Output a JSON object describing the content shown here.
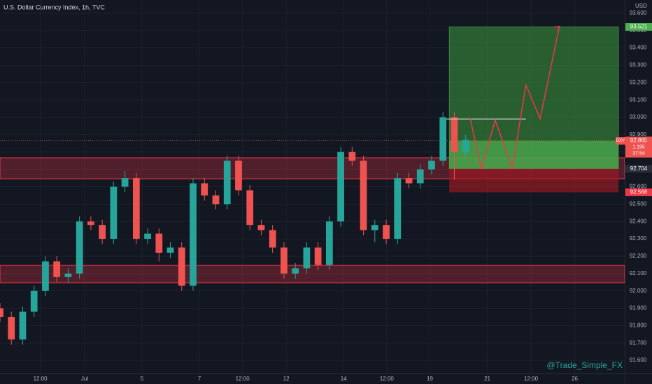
{
  "chart_data": {
    "type": "candlestick",
    "title": "U.S. Dollar Currency Index, 1h, TVC",
    "currency": "USD",
    "watermark": "@Trade_Simple_FX",
    "up_color": "#26a69a",
    "down_color": "#ef5350",
    "x": [
      0,
      2,
      4,
      6,
      8,
      10,
      12,
      14,
      16,
      18,
      20,
      22,
      24,
      26,
      28,
      30,
      32,
      34,
      36,
      38,
      40,
      42,
      44,
      46,
      48,
      50,
      52,
      54,
      56,
      58,
      60,
      62,
      64,
      66,
      68,
      70,
      72,
      74,
      76,
      78,
      80,
      82
    ],
    "open": [
      91.9,
      91.85,
      91.72,
      91.88,
      92.0,
      92.17,
      92.08,
      92.1,
      92.4,
      92.38,
      92.3,
      92.6,
      92.65,
      92.3,
      92.33,
      92.22,
      92.25,
      92.03,
      92.62,
      92.55,
      92.5,
      92.75,
      92.58,
      92.38,
      92.35,
      92.25,
      92.1,
      92.13,
      92.25,
      92.15,
      92.4,
      92.8,
      92.75,
      92.35,
      92.38,
      92.3,
      92.65,
      92.62,
      92.7,
      92.75,
      93.0,
      92.8
    ],
    "high": [
      91.93,
      91.88,
      91.91,
      92.03,
      92.2,
      92.2,
      92.13,
      92.43,
      92.43,
      92.41,
      92.63,
      92.69,
      92.68,
      92.36,
      92.36,
      92.28,
      92.28,
      92.65,
      92.65,
      92.58,
      92.78,
      92.78,
      92.61,
      92.41,
      92.38,
      92.28,
      92.16,
      92.28,
      92.28,
      92.43,
      92.83,
      92.83,
      92.78,
      92.41,
      92.41,
      92.68,
      92.68,
      92.73,
      92.78,
      93.03,
      93.03,
      92.9
    ],
    "low": [
      91.82,
      91.69,
      91.69,
      91.85,
      91.97,
      92.05,
      92.05,
      92.07,
      92.35,
      92.27,
      92.27,
      92.57,
      92.27,
      92.27,
      92.17,
      92.19,
      92.0,
      92.0,
      92.52,
      92.47,
      92.47,
      92.55,
      92.35,
      92.32,
      92.22,
      92.07,
      92.07,
      92.1,
      92.12,
      92.12,
      92.37,
      92.72,
      92.32,
      92.28,
      92.27,
      92.27,
      92.59,
      92.59,
      92.67,
      92.72,
      92.64,
      92.77
    ],
    "close": [
      91.85,
      91.72,
      91.88,
      92.0,
      92.17,
      92.08,
      92.1,
      92.4,
      92.38,
      92.3,
      92.6,
      92.65,
      92.3,
      92.33,
      92.22,
      92.25,
      92.03,
      92.62,
      92.55,
      92.5,
      92.75,
      92.58,
      92.38,
      92.35,
      92.25,
      92.1,
      92.13,
      92.25,
      92.15,
      92.4,
      92.8,
      92.75,
      92.35,
      92.38,
      92.3,
      92.65,
      92.62,
      92.7,
      92.75,
      93.0,
      92.8,
      92.87
    ],
    "xlim": [
      0,
      110
    ],
    "ylim": [
      91.524,
      93.676
    ],
    "xticks": [
      {
        "value": 7.1,
        "label": "12:00"
      },
      {
        "value": 14.9,
        "label": "Jul"
      },
      {
        "value": 25,
        "label": "5"
      },
      {
        "value": 35.1,
        "label": "7"
      },
      {
        "value": 42.7,
        "label": "12:00"
      },
      {
        "value": 50.4,
        "label": "12"
      },
      {
        "value": 60.5,
        "label": "14"
      },
      {
        "value": 68.1,
        "label": "12:00"
      },
      {
        "value": 75.7,
        "label": "19"
      },
      {
        "value": 85.8,
        "label": "21"
      },
      {
        "value": 93.5,
        "label": "12:00"
      },
      {
        "value": 101.2,
        "label": "26"
      }
    ],
    "yticks": [
      {
        "value": 91.6,
        "label": "91.600"
      },
      {
        "value": 91.7,
        "label": "91.700"
      },
      {
        "value": 91.8,
        "label": "91.800"
      },
      {
        "value": 91.9,
        "label": "91.900"
      },
      {
        "value": 92.0,
        "label": "92.000"
      },
      {
        "value": 92.1,
        "label": "92.100"
      },
      {
        "value": 92.2,
        "label": "92.200"
      },
      {
        "value": 92.3,
        "label": "92.300"
      },
      {
        "value": 92.4,
        "label": "92.400"
      },
      {
        "value": 92.5,
        "label": "92.500"
      },
      {
        "value": 92.6,
        "label": "92.600"
      },
      {
        "value": 92.7,
        "label": "92.700"
      },
      {
        "value": 92.8,
        "label": "92.800"
      },
      {
        "value": 92.9,
        "label": "92.900"
      },
      {
        "value": 93.0,
        "label": "93.000"
      },
      {
        "value": 93.1,
        "label": "93.100"
      },
      {
        "value": 93.2,
        "label": "93.200"
      },
      {
        "value": 93.3,
        "label": "93.300"
      },
      {
        "value": 93.4,
        "label": "93.400"
      },
      {
        "value": 93.5,
        "label": "93.500"
      },
      {
        "value": 93.6,
        "label": "93.600"
      }
    ],
    "grid": true,
    "zones": [
      {
        "from": 92.646,
        "to": 92.767
      },
      {
        "from": 92.047,
        "to": 92.147
      }
    ],
    "position": {
      "x": [
        79.1,
        108.9
      ],
      "entry": 92.704,
      "target": 93.521,
      "stop": 92.568
    },
    "level": {
      "value": 92.99,
      "x": [
        78.6,
        92.6
      ]
    },
    "projection": {
      "x": [
        82.8,
        84.75,
        87.2,
        90.2,
        92.6,
        95.1,
        98.5
      ],
      "y": [
        92.992,
        92.703,
        92.984,
        92.703,
        93.186,
        92.992,
        93.524
      ]
    },
    "last": {
      "symbol": "DXY",
      "value": 92.865,
      "change": "1.195",
      "countdown": "37:54"
    }
  }
}
